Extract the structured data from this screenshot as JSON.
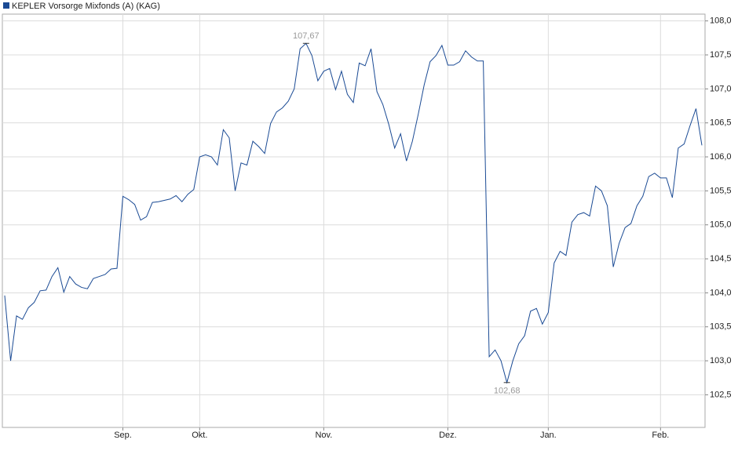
{
  "chart_data": {
    "type": "line",
    "categories": [
      null,
      null,
      null,
      null,
      null,
      null,
      null,
      null,
      null,
      null,
      null,
      null,
      null,
      null,
      null,
      null,
      null,
      null,
      null,
      null,
      "Sep.",
      null,
      null,
      null,
      null,
      null,
      null,
      null,
      null,
      null,
      null,
      null,
      null,
      "Okt.",
      null,
      null,
      null,
      null,
      null,
      null,
      null,
      null,
      null,
      null,
      null,
      null,
      null,
      null,
      null,
      null,
      null,
      null,
      null,
      null,
      "Nov.",
      null,
      null,
      null,
      null,
      null,
      null,
      null,
      null,
      null,
      null,
      null,
      null,
      null,
      null,
      null,
      null,
      null,
      null,
      null,
      null,
      "Dez.",
      null,
      null,
      null,
      null,
      null,
      null,
      null,
      null,
      null,
      null,
      null,
      null,
      null,
      null,
      null,
      null,
      "Jan.",
      null,
      null,
      null,
      null,
      null,
      null,
      null,
      null,
      null,
      null,
      null,
      null,
      null,
      null,
      null,
      null,
      null,
      null,
      "Feb.",
      null,
      null,
      null,
      null,
      null,
      null,
      null
    ],
    "series": [
      {
        "name": "KEPLER Vorsorge Mixfonds (A) (KAG)",
        "color": "#1a4a94",
        "values": [
          103.96,
          103.0,
          103.66,
          103.61,
          103.78,
          103.86,
          104.03,
          104.04,
          104.24,
          104.37,
          104.01,
          104.24,
          104.13,
          104.08,
          104.06,
          104.21,
          104.24,
          104.27,
          104.35,
          104.36,
          105.42,
          105.37,
          105.3,
          105.07,
          105.12,
          105.33,
          105.34,
          105.36,
          105.38,
          105.43,
          105.34,
          105.45,
          105.52,
          106.0,
          106.03,
          106.0,
          105.88,
          106.4,
          106.28,
          105.5,
          105.91,
          105.88,
          106.23,
          106.15,
          106.05,
          106.49,
          106.66,
          106.72,
          106.82,
          107.0,
          107.59,
          107.67,
          107.49,
          107.12,
          107.26,
          107.3,
          106.99,
          107.26,
          106.92,
          106.8,
          107.38,
          107.34,
          107.59,
          106.96,
          106.77,
          106.48,
          106.13,
          106.34,
          105.94,
          106.23,
          106.63,
          107.06,
          107.4,
          107.49,
          107.64,
          107.35,
          107.35,
          107.4,
          107.56,
          107.47,
          107.41,
          107.41,
          103.06,
          103.16,
          103.0,
          102.68,
          103.0,
          103.25,
          103.37,
          103.73,
          103.77,
          103.54,
          103.71,
          104.44,
          104.61,
          104.55,
          105.04,
          105.15,
          105.18,
          105.13,
          105.57,
          105.5,
          105.28,
          104.38,
          104.73,
          104.96,
          105.02,
          105.28,
          105.42,
          105.71,
          105.76,
          105.69,
          105.69,
          105.4,
          106.13,
          106.19,
          106.46,
          106.71,
          106.17
        ]
      }
    ],
    "max_label": "107,67",
    "min_label": "102,68",
    "ylim": [
      102.02,
      108.1
    ],
    "yticks": [
      {
        "value": 102.5,
        "label": "102,5"
      },
      {
        "value": 103.0,
        "label": "103,0"
      },
      {
        "value": 103.5,
        "label": "103,5"
      },
      {
        "value": 104.0,
        "label": "104,0"
      },
      {
        "value": 104.5,
        "label": "104,5"
      },
      {
        "value": 105.0,
        "label": "105,0"
      },
      {
        "value": 105.5,
        "label": "105,5"
      },
      {
        "value": 106.0,
        "label": "106,0"
      },
      {
        "value": 106.5,
        "label": "106,5"
      },
      {
        "value": 107.0,
        "label": "107,0"
      },
      {
        "value": 107.5,
        "label": "107,5"
      },
      {
        "value": 108.0,
        "label": "108,0"
      }
    ],
    "grid": true
  }
}
